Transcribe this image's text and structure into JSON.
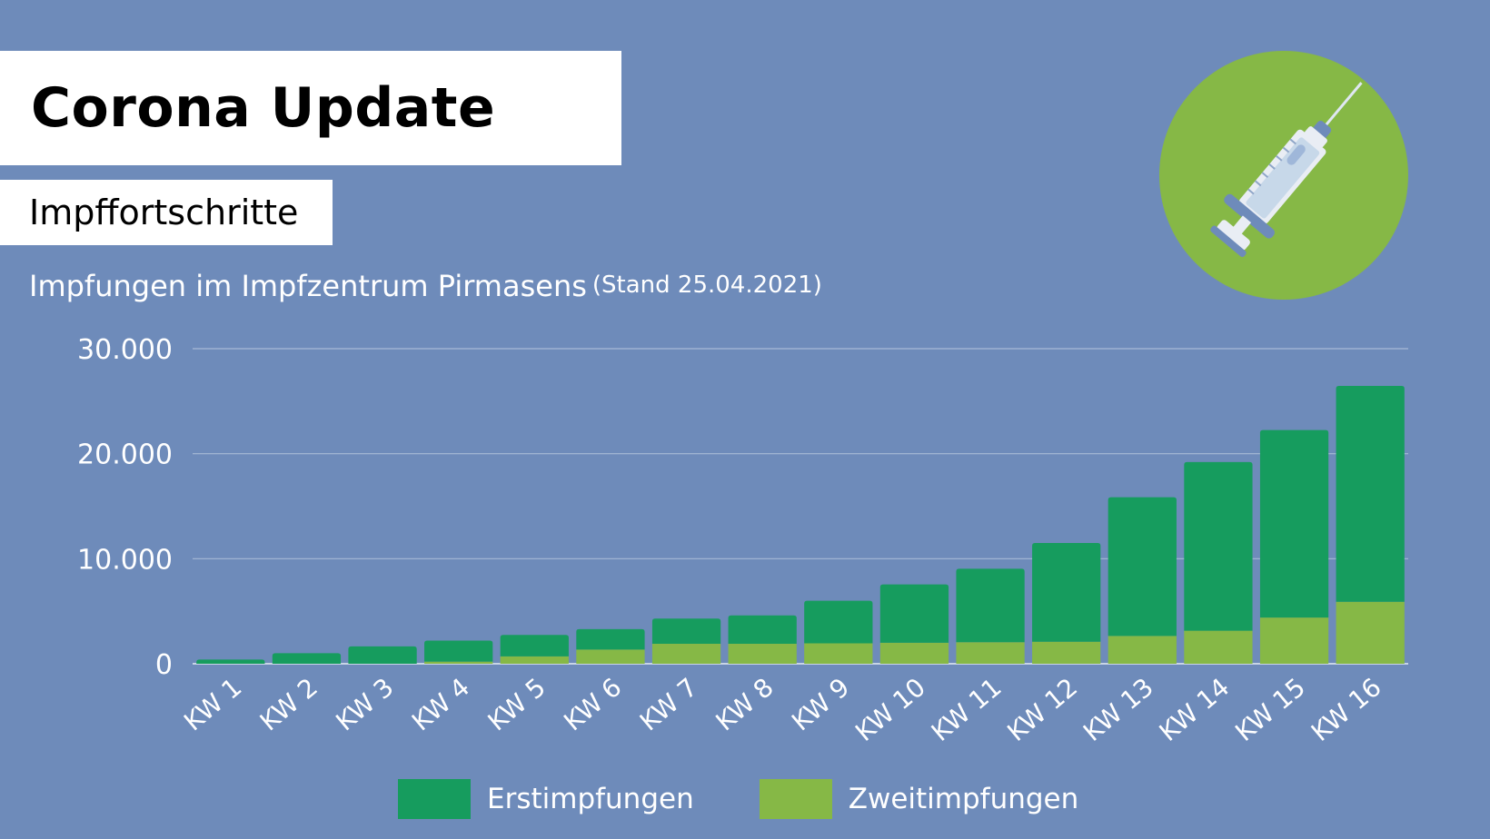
{
  "header": {
    "title": "Corona Update",
    "subtitle": "Impffortschritte",
    "chart_heading": "Impfungen im Impfzentrum Pirmasens",
    "chart_stand": "(Stand 25.04.2021)"
  },
  "icons": {
    "badge_icon": "syringe-icon"
  },
  "colors": {
    "background": "#6e8bba",
    "erstimpfungen": "#169c5e",
    "zweitimpfungen": "#86b846",
    "badge": "#86b846"
  },
  "chart_data": {
    "type": "bar",
    "stacked": true,
    "categories": [
      "KW 1",
      "KW 2",
      "KW 3",
      "KW 4",
      "KW 5",
      "KW 6",
      "KW 7",
      "KW 8",
      "KW 9",
      "KW 10",
      "KW 11",
      "KW 12",
      "KW 13",
      "KW 14",
      "KW 15",
      "KW 16"
    ],
    "series": [
      {
        "name": "Zweitimpfungen",
        "color": "#86b846",
        "values": [
          0,
          0,
          0,
          200,
          700,
          1350,
          1900,
          1900,
          1950,
          2000,
          2050,
          2100,
          2650,
          3150,
          4400,
          5900
        ]
      },
      {
        "name": "Erstimpfungen",
        "color": "#169c5e",
        "values": [
          400,
          1000,
          1650,
          2000,
          2050,
          1950,
          2400,
          2700,
          4050,
          5550,
          7000,
          9400,
          13200,
          16050,
          17850,
          20550
        ]
      }
    ],
    "yticks": [
      "0",
      "10.000",
      "20.000",
      "30.000"
    ],
    "ylim": [
      0,
      30000
    ],
    "grid": true,
    "legend": "bottom"
  }
}
